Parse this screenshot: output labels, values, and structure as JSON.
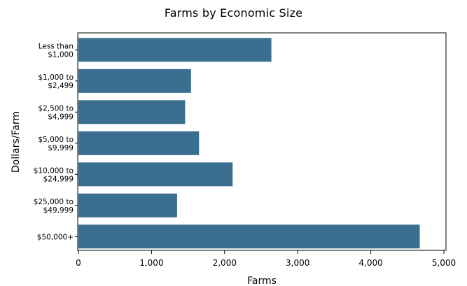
{
  "chart_data": {
    "type": "bar",
    "orientation": "horizontal",
    "title": "Farms by Economic Size",
    "xlabel": "Farms",
    "ylabel": "Dollars/Farm",
    "categories": [
      [
        "Less than",
        "$1,000"
      ],
      [
        "$1,000 to",
        "$2,499"
      ],
      [
        "$2,500 to",
        "$4,999"
      ],
      [
        "$5,000 to",
        "$9,999"
      ],
      [
        "$10,000 to",
        "$24,999"
      ],
      [
        "$25,000 to",
        "$49,999"
      ],
      [
        "$50,000+"
      ]
    ],
    "values": [
      2640,
      1540,
      1460,
      1650,
      2110,
      1350,
      4670
    ],
    "xlim": [
      0,
      5000
    ],
    "xticks": [
      0,
      1000,
      2000,
      3000,
      4000,
      5000
    ],
    "xtick_labels": [
      "0",
      "1,000",
      "2,000",
      "3,000",
      "4,000",
      "5,000"
    ],
    "bar_color": "#3a6f8f",
    "grid": false,
    "legend": "none"
  }
}
